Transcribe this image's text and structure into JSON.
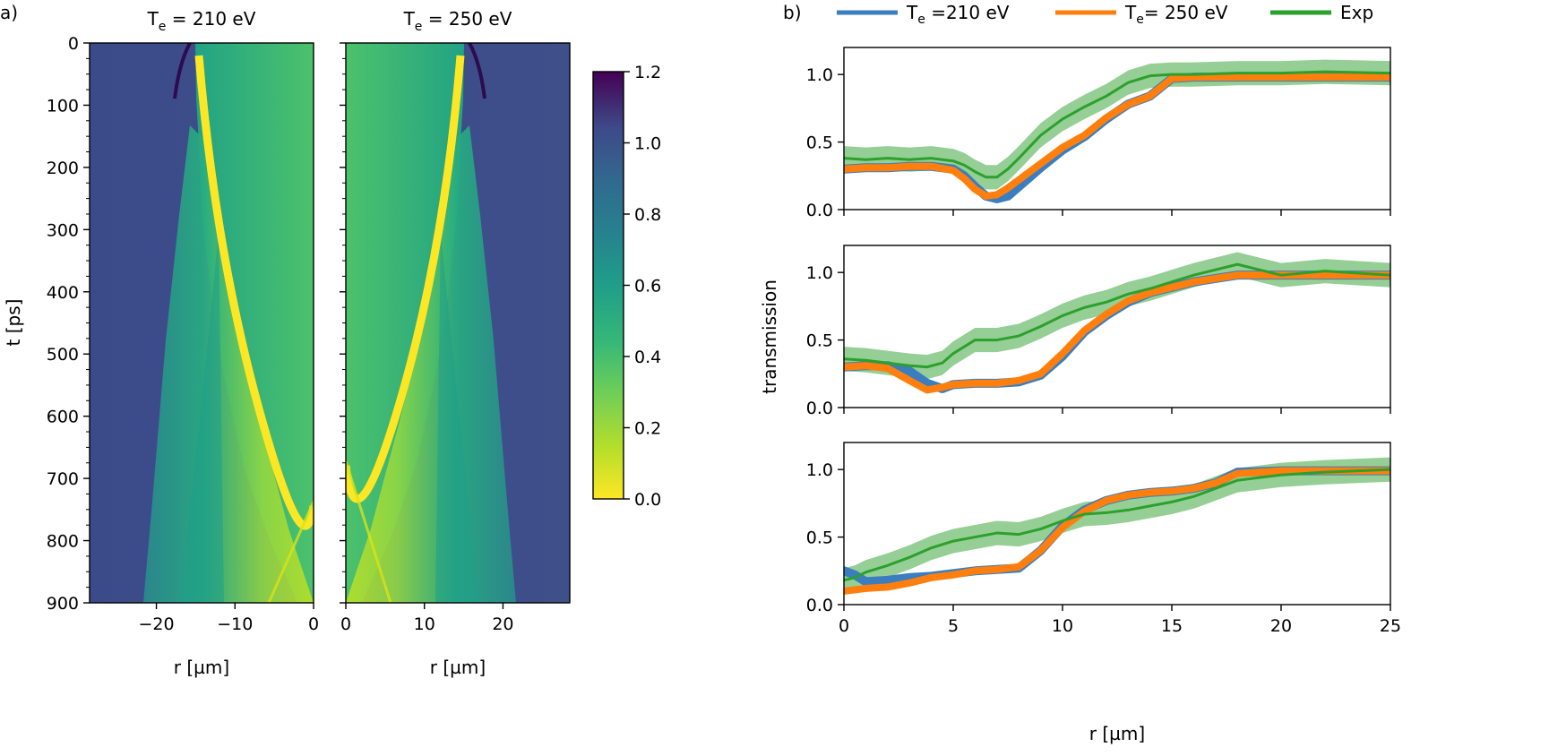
{
  "panel_labels": {
    "a": "a)",
    "b": "b)"
  },
  "chart_data": [
    {
      "type": "heatmap",
      "panel": "a",
      "title_prefix": "T",
      "title_sub": "e",
      "title_suffix": " = 210 eV",
      "xlabel": "r [µm]",
      "ylabel": "t [ps]",
      "xlim": [
        -28.5,
        0
      ],
      "ylim": [
        900,
        0
      ],
      "xticks": [
        -20,
        -10,
        0
      ],
      "yticks": [
        0,
        100,
        200,
        300,
        400,
        500,
        600,
        700,
        800,
        900
      ],
      "features": {
        "background_transmission": 0.9,
        "shock_front_t_ps": [
          20,
          740
        ],
        "shock_front_r_um": [
          -14.5,
          0
        ],
        "inner_region_transmission": 0.3
      }
    },
    {
      "type": "heatmap",
      "panel": "a",
      "title_prefix": "T",
      "title_sub": "e",
      "title_suffix": " = 250 eV",
      "xlabel": "r [µm]",
      "xlim": [
        0,
        28.5
      ],
      "ylim": [
        900,
        0
      ],
      "xticks": [
        0,
        10,
        20
      ],
      "features": {
        "background_transmission": 0.9,
        "shock_front_t_ps": [
          20,
          680
        ],
        "shock_front_r_um": [
          14.5,
          0
        ],
        "inner_region_transmission": 0.3
      }
    },
    {
      "type": "colorbar",
      "colormap": "viridis_r",
      "range": [
        0.0,
        1.2
      ],
      "ticks": [
        "0.0",
        "0.2",
        "0.4",
        "0.6",
        "0.8",
        "1.0",
        "1.2"
      ]
    },
    {
      "type": "line",
      "panel": "b",
      "subplot": 1,
      "xlim": [
        0,
        25
      ],
      "ylim": [
        0,
        1.2
      ],
      "x": [
        0,
        1,
        2,
        3,
        4,
        5,
        5.5,
        6,
        6.5,
        7,
        7.5,
        8,
        9,
        10,
        11,
        12,
        13,
        14,
        15,
        16,
        18,
        20,
        22,
        25
      ],
      "series": [
        {
          "name": "Te=210 eV",
          "values": [
            0.3,
            0.31,
            0.31,
            0.32,
            0.32,
            0.3,
            0.25,
            0.17,
            0.1,
            0.08,
            0.1,
            0.17,
            0.31,
            0.44,
            0.54,
            0.67,
            0.78,
            0.84,
            0.97,
            0.98,
            0.98,
            0.98,
            0.98,
            0.98
          ]
        },
        {
          "name": "Te= 250 eV",
          "values": [
            0.3,
            0.31,
            0.31,
            0.32,
            0.32,
            0.29,
            0.23,
            0.15,
            0.1,
            0.11,
            0.16,
            0.22,
            0.34,
            0.46,
            0.55,
            0.68,
            0.78,
            0.84,
            0.97,
            0.98,
            0.98,
            0.98,
            0.98,
            0.98
          ]
        },
        {
          "name": "Exp",
          "values": [
            0.38,
            0.37,
            0.38,
            0.37,
            0.38,
            0.36,
            0.33,
            0.28,
            0.24,
            0.24,
            0.3,
            0.38,
            0.55,
            0.67,
            0.76,
            0.84,
            0.94,
            0.99,
            1.0,
            1.0,
            1.01,
            1.01,
            1.02,
            1.01
          ]
        }
      ]
    },
    {
      "type": "line",
      "panel": "b",
      "subplot": 2,
      "xlim": [
        0,
        25
      ],
      "ylim": [
        0,
        1.2
      ],
      "x": [
        0,
        1,
        2,
        3,
        3.8,
        4.5,
        5,
        6,
        7,
        8,
        9,
        10,
        11,
        12,
        13,
        14,
        15,
        16,
        18,
        20,
        22,
        25
      ],
      "series": [
        {
          "name": "Te=210 eV",
          "values": [
            0.3,
            0.31,
            0.31,
            0.27,
            0.18,
            0.14,
            0.17,
            0.18,
            0.18,
            0.19,
            0.24,
            0.38,
            0.56,
            0.68,
            0.78,
            0.85,
            0.89,
            0.93,
            0.98,
            0.98,
            0.98,
            0.98
          ]
        },
        {
          "name": "Te= 250 eV",
          "values": [
            0.3,
            0.31,
            0.29,
            0.2,
            0.13,
            0.15,
            0.17,
            0.18,
            0.18,
            0.2,
            0.25,
            0.4,
            0.57,
            0.69,
            0.79,
            0.85,
            0.89,
            0.93,
            0.98,
            0.98,
            0.98,
            0.98
          ]
        },
        {
          "name": "Exp",
          "values": [
            0.36,
            0.35,
            0.33,
            0.31,
            0.3,
            0.33,
            0.4,
            0.5,
            0.5,
            0.53,
            0.6,
            0.68,
            0.74,
            0.78,
            0.84,
            0.88,
            0.93,
            0.98,
            1.06,
            0.98,
            1.01,
            0.98
          ]
        }
      ]
    },
    {
      "type": "line",
      "panel": "b",
      "subplot": 3,
      "xlim": [
        0,
        25
      ],
      "ylim": [
        0,
        1.2
      ],
      "x": [
        0,
        0.5,
        1,
        2,
        3,
        4,
        5,
        6,
        7,
        8,
        9,
        10,
        11,
        12,
        13,
        14,
        15,
        16,
        17,
        18,
        20,
        22,
        25
      ],
      "series": [
        {
          "name": "Te=210 eV",
          "values": [
            0.25,
            0.22,
            0.17,
            0.18,
            0.2,
            0.21,
            0.23,
            0.25,
            0.26,
            0.27,
            0.4,
            0.58,
            0.7,
            0.77,
            0.81,
            0.83,
            0.84,
            0.86,
            0.9,
            0.98,
            0.99,
            0.99,
            0.99
          ]
        },
        {
          "name": "Te= 250 eV",
          "values": [
            0.1,
            0.11,
            0.12,
            0.13,
            0.16,
            0.2,
            0.22,
            0.25,
            0.26,
            0.28,
            0.4,
            0.57,
            0.69,
            0.77,
            0.81,
            0.83,
            0.84,
            0.86,
            0.9,
            0.97,
            0.99,
            0.99,
            0.99
          ]
        },
        {
          "name": "Exp",
          "values": [
            0.18,
            0.2,
            0.24,
            0.29,
            0.35,
            0.42,
            0.47,
            0.5,
            0.53,
            0.52,
            0.56,
            0.62,
            0.67,
            0.68,
            0.7,
            0.73,
            0.76,
            0.8,
            0.86,
            0.92,
            0.96,
            0.98,
            1.0
          ]
        }
      ]
    }
  ],
  "panel_b": {
    "xlabel": "r [µm]",
    "ylabel": "transmission",
    "xticks": [
      0,
      5,
      10,
      15,
      20,
      25
    ],
    "yticks": [
      "0.0",
      "0.5",
      "1.0"
    ],
    "exp_band_halfwidth": 0.09,
    "legend": [
      {
        "prefix": "T",
        "sub": "e",
        "suffix": " =210 eV",
        "color": "#3a7ebf"
      },
      {
        "prefix": "T",
        "sub": "e",
        "suffix": "= 250 eV",
        "color": "#ff7f0e"
      },
      {
        "prefix": "Exp",
        "sub": "",
        "suffix": "",
        "color": "#2ca02c"
      }
    ]
  }
}
